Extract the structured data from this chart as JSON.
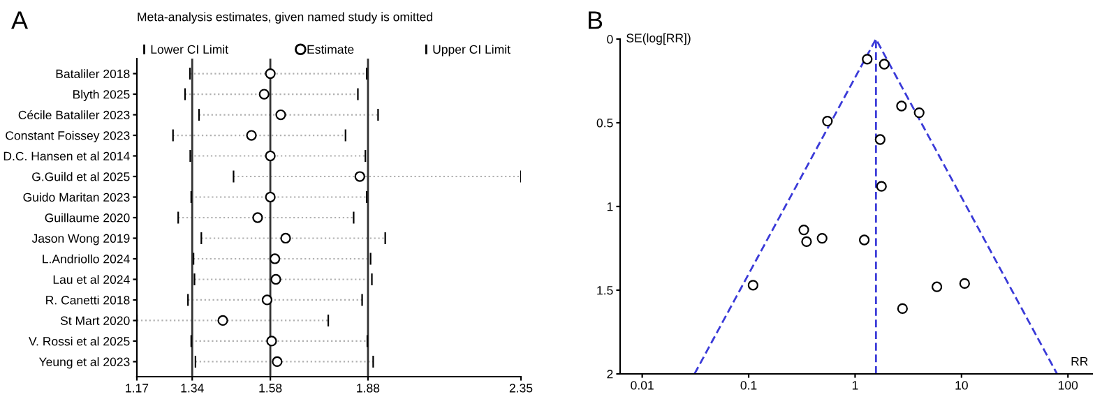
{
  "chart_data": [
    {
      "type": "scatter",
      "title": "A",
      "subtitle": "Meta-analysis estimates, given named study is omitted",
      "orientation": "horizontal",
      "categories": [
        "Bataliler 2018",
        "Blyth 2025",
        "Cécile Bataliler 2023",
        "Constant Foissey 2023",
        "D.C. Hansen et al 2014",
        "G.Guild et al 2025",
        "Guido Maritan 2023",
        "Guillaume 2020",
        "Jason Wong 2019",
        "L.Andriollo 2024",
        "Lau et al 2024",
        "R. Canetti 2018",
        "St Mart 2020",
        "V. Rossi et al 2025",
        "Yeung et al 2023"
      ],
      "series": [
        {
          "name": "Estimate",
          "color": "#000000",
          "marker": "circle",
          "values": [
            1.58,
            1.561,
            1.612,
            1.522,
            1.58,
            1.855,
            1.58,
            1.541,
            1.627,
            1.594,
            1.597,
            1.57,
            1.434,
            1.584,
            1.601
          ],
          "errors": [
            [
              1.333,
              1.876
            ],
            [
              1.318,
              1.849
            ],
            [
              1.361,
              1.911
            ],
            [
              1.281,
              1.811
            ],
            [
              1.334,
              1.872
            ],
            [
              1.467,
              2.35
            ],
            [
              1.337,
              1.876
            ],
            [
              1.297,
              1.836
            ],
            [
              1.368,
              1.933
            ],
            [
              1.344,
              1.888
            ],
            [
              1.347,
              1.892
            ],
            [
              1.327,
              1.862
            ],
            [
              1.17,
              1.758
            ],
            [
              1.337,
              1.878
            ],
            [
              1.35,
              1.896
            ]
          ]
        }
      ],
      "annotations": [
        "Lower CI Limit",
        "Upper CI Limit"
      ],
      "xlim": [
        1.17,
        2.35
      ],
      "xticks": [
        1.17,
        1.34,
        1.58,
        1.88,
        2.35
      ],
      "ref_lines": [
        {
          "axis": "x",
          "value": 1.34,
          "color": "#333333"
        },
        {
          "axis": "x",
          "value": 1.58,
          "color": "#333333"
        },
        {
          "axis": "x",
          "value": 1.88,
          "color": "#333333"
        }
      ],
      "legend": "top left",
      "grid": false
    },
    {
      "type": "scatter",
      "title": "B",
      "xlabel": "RR",
      "ylabel": "SE(log[RR])",
      "log": "x",
      "series": [
        {
          "type": "scatter",
          "color": "#000000",
          "marker": "circle",
          "x": [
            1.3,
            1.88,
            2.73,
            4.0,
            0.55,
            1.72,
            1.77,
            0.33,
            0.35,
            0.49,
            1.22,
            0.11,
            5.87,
            10.7,
            2.79
          ],
          "values": [
            0.12,
            0.15,
            0.4,
            0.44,
            0.49,
            0.6,
            0.88,
            1.14,
            1.21,
            1.19,
            1.2,
            1.47,
            1.48,
            1.46,
            1.61
          ]
        },
        {
          "type": "line",
          "color": "#3a3ad8",
          "line_style": "dashed",
          "marker": "none",
          "x": [
            0.031,
            1.57,
            79
          ],
          "values": [
            2,
            0,
            2
          ]
        }
      ],
      "xlim": [
        0.0062,
        169
      ],
      "xticks": [
        0.01,
        0.1,
        1,
        10,
        100
      ],
      "ylim": [
        2,
        0
      ],
      "yticks": [
        0,
        0.5,
        1,
        1.5,
        2
      ],
      "ref_lines": [
        {
          "axis": "x",
          "value": 1.57,
          "color": "#3a3ad8",
          "line_style": "dashed"
        }
      ],
      "legend": false,
      "grid": false
    }
  ]
}
